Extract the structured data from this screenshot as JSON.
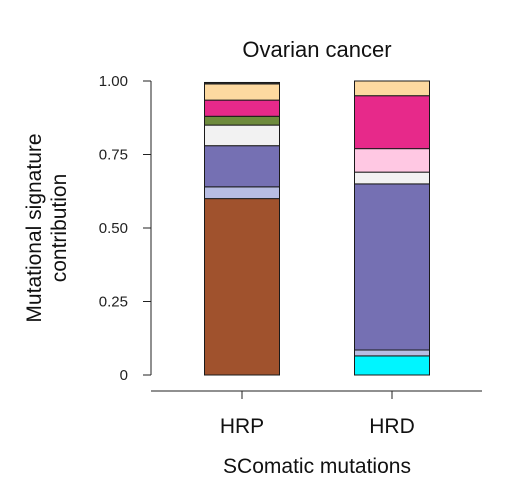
{
  "chart_data": {
    "type": "bar",
    "stacked": true,
    "title": "Ovarian cancer",
    "xlabel": "SComatic mutations",
    "ylabel_lines": [
      "Mutational signature",
      "contribution"
    ],
    "ylim": [
      0,
      1
    ],
    "yticks": [
      0,
      0.25,
      0.5,
      0.75,
      1.0
    ],
    "ytick_labels": [
      "0",
      "0.25",
      "0.50",
      "0.75",
      "1.00"
    ],
    "grid": false,
    "legend": "none",
    "categories": [
      "HRP",
      "HRD"
    ],
    "stacks": [
      {
        "category": "HRP",
        "segments": [
          {
            "value": 0.6,
            "color": "#A0522D"
          },
          {
            "value": 0.04,
            "color": "#B7BDE3"
          },
          {
            "value": 0.14,
            "color": "#7570B3"
          },
          {
            "value": 0.07,
            "color": "#F2F2F2"
          },
          {
            "value": 0.03,
            "color": "#6E8B3D"
          },
          {
            "value": 0.055,
            "color": "#E7298A"
          },
          {
            "value": 0.055,
            "color": "#FDD9A0"
          },
          {
            "value": 0.005,
            "color": "#333333"
          }
        ]
      },
      {
        "category": "HRD",
        "segments": [
          {
            "value": 0.065,
            "color": "#00F5FF"
          },
          {
            "value": 0.02,
            "color": "#B7BDE3"
          },
          {
            "value": 0.565,
            "color": "#7570B3"
          },
          {
            "value": 0.04,
            "color": "#F2F2F2"
          },
          {
            "value": 0.08,
            "color": "#FFC8E3"
          },
          {
            "value": 0.18,
            "color": "#E7298A"
          },
          {
            "value": 0.05,
            "color": "#FDD9A0"
          }
        ]
      }
    ]
  }
}
